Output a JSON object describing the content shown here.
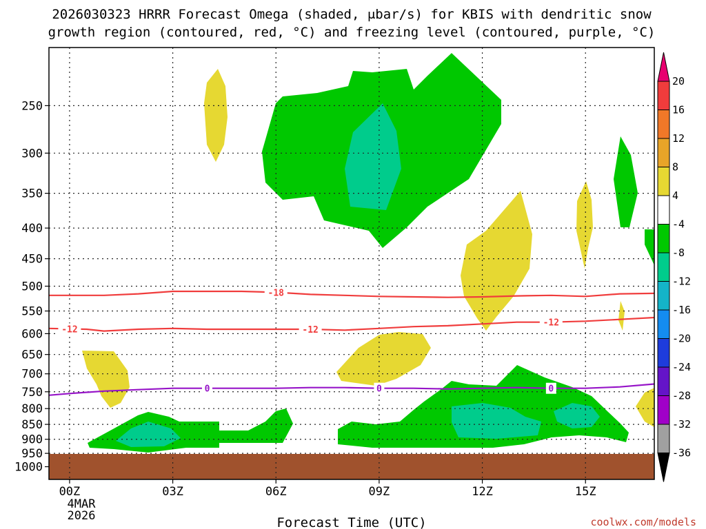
{
  "chart_data": {
    "type": "contour-cross-section",
    "title_line1": "2026030323 HRRR Forecast Omega (shaded, μbar/s) for KBIS with dendritic snow",
    "title_line2": "growth region (contoured, red, °C) and freezing level (contoured, purple, °C)",
    "xlabel": "Forecast Time (UTC)",
    "x_ticks": [
      {
        "hour": 0,
        "label": "00Z"
      },
      {
        "hour": 3,
        "label": "03Z"
      },
      {
        "hour": 6,
        "label": "06Z"
      },
      {
        "hour": 9,
        "label": "09Z"
      },
      {
        "hour": 12,
        "label": "12Z"
      },
      {
        "hour": 15,
        "label": "15Z"
      }
    ],
    "date_label_line1": "4MAR",
    "date_label_line2": "2026",
    "y_ticks": [
      250,
      300,
      350,
      400,
      450,
      500,
      550,
      600,
      650,
      700,
      750,
      800,
      850,
      900,
      950,
      1000
    ],
    "ylim": [
      1050,
      200
    ],
    "xlim": [
      -0.6,
      17.0
    ],
    "colorbar": {
      "labels": [
        "20",
        "16",
        "12",
        "8",
        "4",
        "-4",
        "-8",
        "-12",
        "-16",
        "-20",
        "-24",
        "-28",
        "-32",
        "-36"
      ],
      "colors": [
        "#e8006f",
        "#f03c3c",
        "#f07828",
        "#e8a428",
        "#e6d832",
        "#ffffff",
        "#00c800",
        "#00cc8c",
        "#14b4c8",
        "#148cf0",
        "#1e3cdc",
        "#6414c8",
        "#a000c8",
        "#a0a0a0",
        "#000000"
      ]
    },
    "shade_colors": {
      "up_weak": "#00c800",
      "up_mod": "#00cc8c",
      "down_weak": "#e6d832",
      "ground": "#a0522d"
    },
    "isotherms": [
      {
        "label": "-18",
        "color": "#f03c3c",
        "points": [
          [
            -0.6,
            518
          ],
          [
            1,
            518
          ],
          [
            2,
            515
          ],
          [
            3,
            510
          ],
          [
            4,
            510
          ],
          [
            5,
            510
          ],
          [
            6,
            512
          ],
          [
            7,
            516
          ],
          [
            8,
            518
          ],
          [
            9,
            520
          ],
          [
            10,
            521
          ],
          [
            11,
            522
          ],
          [
            12,
            521
          ],
          [
            13,
            519
          ],
          [
            14,
            518
          ],
          [
            15,
            520
          ],
          [
            16,
            515
          ],
          [
            17,
            514
          ]
        ],
        "label_hours": [
          6
        ]
      },
      {
        "label": "-12",
        "color": "#f03c3c",
        "points": [
          [
            -0.6,
            588
          ],
          [
            0.5,
            590
          ],
          [
            1,
            594
          ],
          [
            2,
            590
          ],
          [
            3,
            588
          ],
          [
            4,
            590
          ],
          [
            5,
            590
          ],
          [
            6,
            590
          ],
          [
            7,
            590
          ],
          [
            8,
            592
          ],
          [
            9,
            588
          ],
          [
            10,
            584
          ],
          [
            11,
            582
          ],
          [
            12,
            578
          ],
          [
            13,
            574
          ],
          [
            14,
            574
          ],
          [
            15,
            572
          ],
          [
            16,
            568
          ],
          [
            17,
            564
          ]
        ],
        "label_hours": [
          0,
          7,
          14
        ]
      },
      {
        "label": "0",
        "color": "#9614c8",
        "points": [
          [
            -0.6,
            760
          ],
          [
            0,
            755
          ],
          [
            1,
            748
          ],
          [
            2,
            744
          ],
          [
            3,
            740
          ],
          [
            4,
            740
          ],
          [
            5,
            740
          ],
          [
            6,
            740
          ],
          [
            7,
            738
          ],
          [
            8,
            738
          ],
          [
            9,
            740
          ],
          [
            10,
            740
          ],
          [
            11,
            742
          ],
          [
            12,
            740
          ],
          [
            13,
            738
          ],
          [
            14,
            740
          ],
          [
            15,
            740
          ],
          [
            16,
            736
          ],
          [
            17,
            728
          ]
        ],
        "label_hours": [
          4,
          9,
          14
        ]
      }
    ]
  },
  "credit": "coolwx.com/models"
}
